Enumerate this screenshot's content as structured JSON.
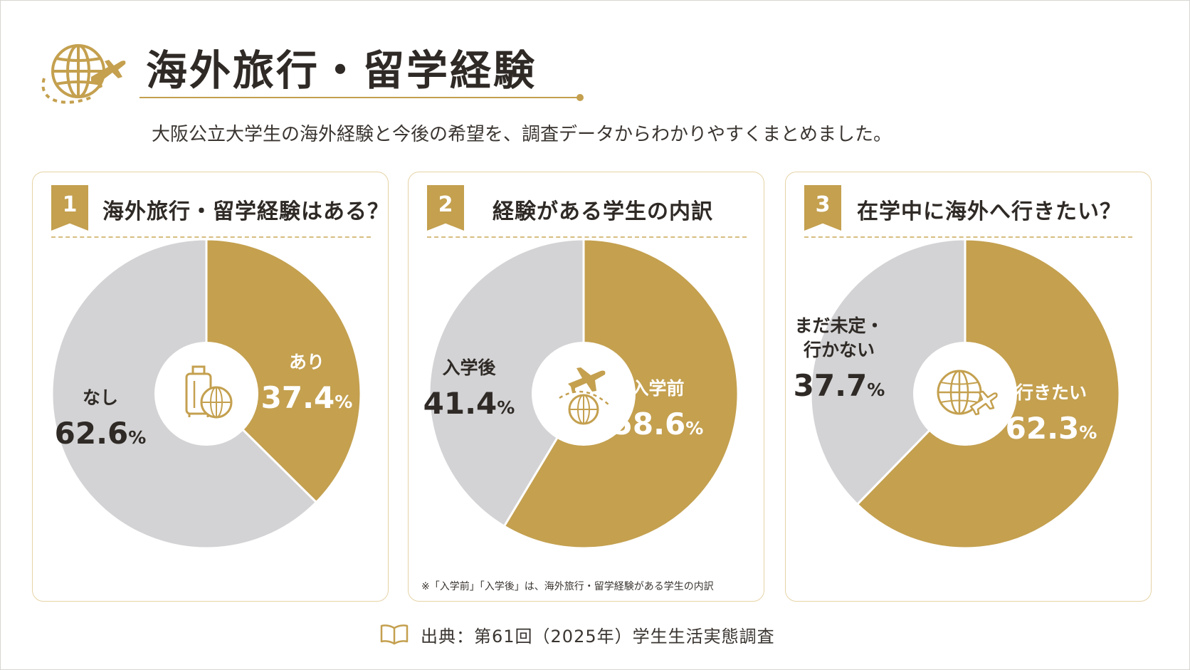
{
  "header": {
    "title": "海外旅行・留学経験",
    "subtitle": "大阪公立大学生の海外経験と今後の希望を、調査データからわかりやすくまとめました。",
    "accent_color": "#c4a04f",
    "icon": "globe-airplane-icon"
  },
  "panels": [
    {
      "number": "1",
      "title": "海外旅行・留学経験はある？",
      "center_icon": "suitcase-globe-icon"
    },
    {
      "number": "2",
      "title": "経験がある学生の内訳",
      "center_icon": "airplane-globe-icon",
      "footnote": "※「入学前」「入学後」は、海外旅行・留学経験がある学生の内訳"
    },
    {
      "number": "3",
      "title": "在学中に海外へ行きたい？",
      "center_icon": "globe-airplane-icon"
    }
  ],
  "chart_data": [
    {
      "type": "pie",
      "title": "海外旅行・留学経験はある？",
      "slices": [
        {
          "label": "あり",
          "value": 37.4,
          "value_text": "37.4",
          "color": "#c4a04f"
        },
        {
          "label": "なし",
          "value": 62.6,
          "value_text": "62.6",
          "color": "#d3d3d5"
        }
      ],
      "unit": "%"
    },
    {
      "type": "pie",
      "title": "経験がある学生の内訳",
      "slices": [
        {
          "label": "入学前",
          "value": 58.6,
          "value_text": "58.6",
          "color": "#c4a04f"
        },
        {
          "label": "入学後",
          "value": 41.4,
          "value_text": "41.4",
          "color": "#d3d3d5"
        }
      ],
      "unit": "%"
    },
    {
      "type": "pie",
      "title": "在学中に海外へ行きたい？",
      "slices": [
        {
          "label": "行きたい",
          "value": 62.3,
          "value_text": "62.3",
          "color": "#c4a04f"
        },
        {
          "label": "まだ未定・\n行かない",
          "value": 37.7,
          "value_text": "37.7",
          "color": "#d3d3d5"
        }
      ],
      "unit": "%"
    }
  ],
  "source": {
    "icon": "book-icon",
    "text": "出典：第61回（2025年）学生生活実態調査"
  }
}
